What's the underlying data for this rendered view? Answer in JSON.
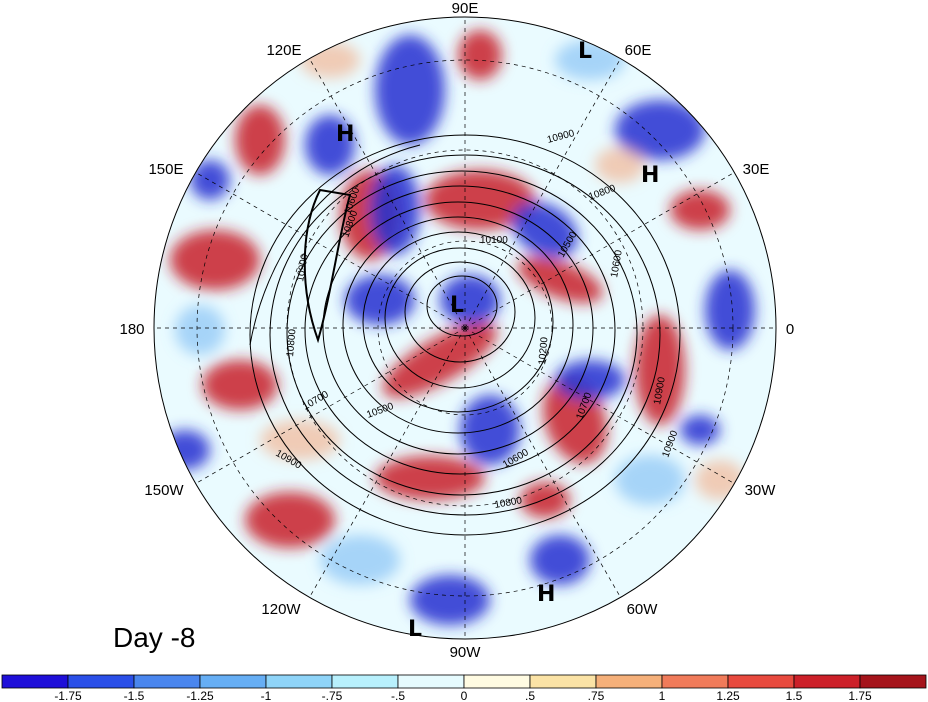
{
  "map": {
    "projection": "north polar stereographic",
    "longitude_labels": [
      "90E",
      "60E",
      "30E",
      "0",
      "30W",
      "60W",
      "90W",
      "120W",
      "150W",
      "180",
      "150E",
      "120E"
    ],
    "panel_label": "Day -8",
    "pressure_centers": [
      {
        "type": "L",
        "location": "north pole"
      },
      {
        "type": "L",
        "location": "north of Siberia near 60E"
      },
      {
        "type": "L",
        "location": "central North America near 90W"
      },
      {
        "type": "H",
        "location": "Siberia near 120E"
      },
      {
        "type": "H",
        "location": "Europe near 30E"
      },
      {
        "type": "H",
        "location": "eastern North America near 65W"
      }
    ],
    "contour_labels": [
      "10900",
      "10800",
      "10100",
      "10500",
      "10600",
      "10200",
      "10700",
      "10500",
      "10900",
      "10800",
      "10600",
      "10900",
      "10800",
      "10900",
      "10900",
      "10600",
      "10800",
      "10700"
    ],
    "colors": {
      "positive": "#c8202b",
      "negative": "#2430d0",
      "neutral": "#ffffff",
      "contours": "#000000"
    }
  },
  "colorbar": {
    "ticks": [
      "-1.75",
      "-1.5",
      "-1.25",
      "-1",
      "-.75",
      "-.5",
      "0",
      ".5",
      ".75",
      "1",
      "1.25",
      "1.5",
      "1.75"
    ],
    "colors": [
      "#1e0fd8",
      "#2a4fe8",
      "#4a86ee",
      "#66aef4",
      "#8fd4f8",
      "#b8f0fc",
      "#e6fbfe",
      "#fffbe2",
      "#fbe3a6",
      "#f5b07a",
      "#f07b5a",
      "#e84a3e",
      "#cc2029",
      "#a5141b"
    ]
  }
}
